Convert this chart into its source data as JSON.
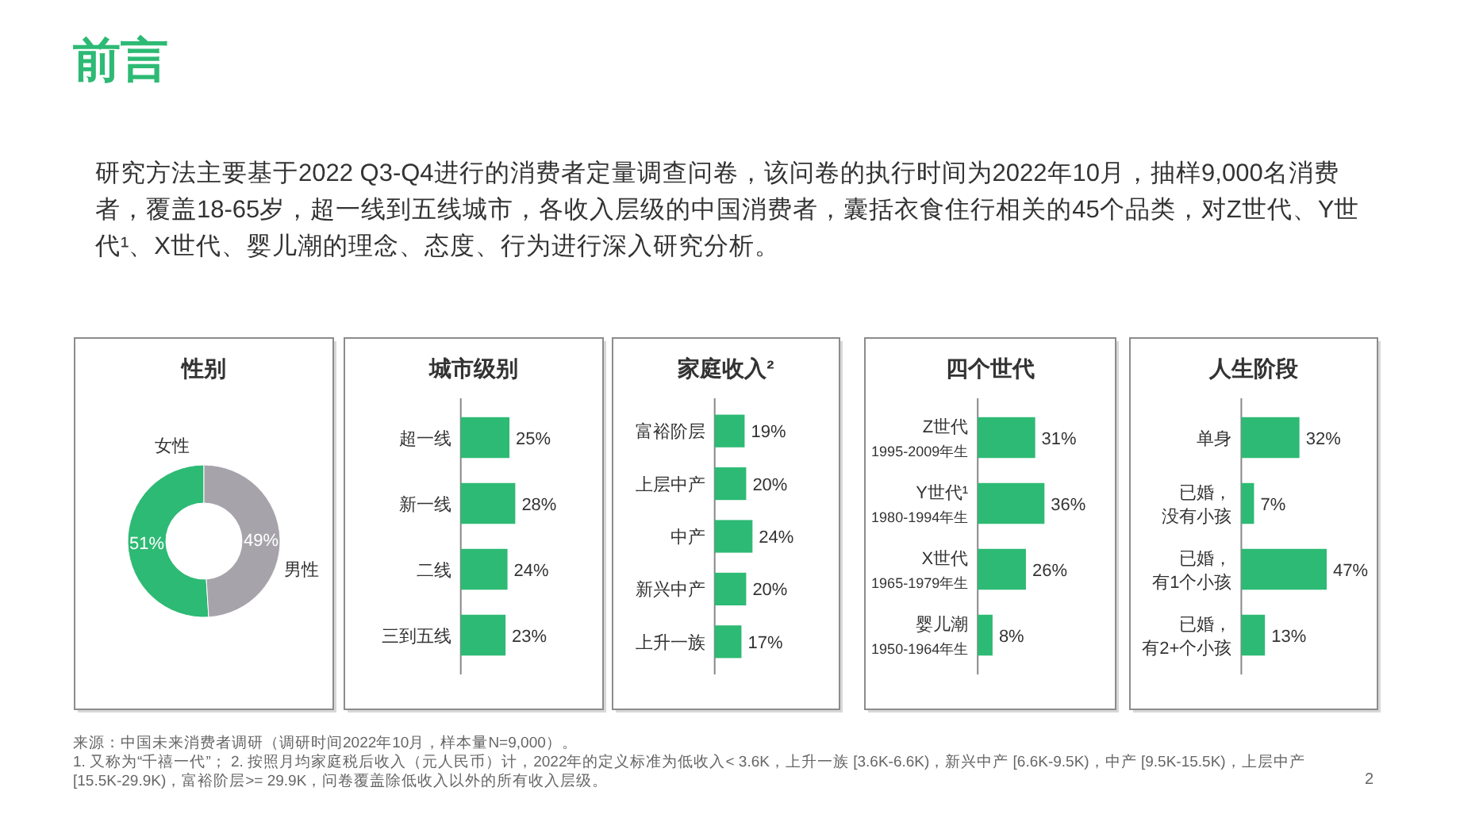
{
  "chart_data": [
    {
      "type": "other",
      "title": "前言",
      "annotations": [
        "研究方法主要基于2022 Q3-Q4进行的消费者定量调查问卷，该问卷的执行时间为2022年10月，抽样9,000名消费者，覆盖18-65岁，超一线到五线城市，各收入层级的中国消费者，囊括衣食住行相关的45个品类，对Z世代、Y世代¹、X世代、婴儿潮的理念、态度、行为进行深入研究分析。",
        "来源：中国未来消费者调研（调研时间2022年10月，样本量N=9,000）。",
        "1. 又称为“千禧一代”； 2. 按照月均家庭税后收入（元人民币）计，2022年的定义标准为低收入< 3.6K，上升一族 [3.6K-6.6K)，新兴中产 [6.6K-9.5K)，中产 [9.5K-15.5K)，上层中产 [15.5K-29.9K)，富裕阶层>= 29.9K，问卷覆盖除低收入以外的所有收入层级。",
        "2"
      ]
    },
    {
      "type": "donut",
      "title": "性别",
      "categories": [
        "女性",
        "男性"
      ],
      "values": [
        51,
        49
      ],
      "colors": [
        "#2dba74",
        "#a7a3ab"
      ],
      "value_labels": [
        "51%",
        "49%"
      ]
    },
    {
      "type": "bar",
      "orientation": "horizontal",
      "title": "城市级别",
      "categories": [
        "超一线",
        "新一线",
        "二线",
        "三到五线"
      ],
      "values": [
        25,
        28,
        24,
        23
      ],
      "color": "#2dba74",
      "value_labels": [
        "25%",
        "28%",
        "24%",
        "23%"
      ]
    },
    {
      "type": "bar",
      "orientation": "horizontal",
      "title": "家庭收入²",
      "categories": [
        "富裕阶层",
        "上层中产",
        "中产",
        "新兴中产",
        "上升一族"
      ],
      "values": [
        19,
        20,
        24,
        20,
        17
      ],
      "color": "#2dba74",
      "value_labels": [
        "19%",
        "20%",
        "24%",
        "20%",
        "17%"
      ]
    },
    {
      "type": "bar",
      "orientation": "horizontal",
      "title": "四个世代",
      "categories": [
        "Z世代\n1995-2009年生",
        "Y世代¹\n1980-1994年生",
        "X世代\n1965-1979年生",
        "婴儿潮\n1950-1964年生"
      ],
      "values": [
        31,
        36,
        26,
        8
      ],
      "color": "#2dba74",
      "value_labels": [
        "31%",
        "36%",
        "26%",
        "8%"
      ]
    },
    {
      "type": "bar",
      "orientation": "horizontal",
      "title": "人生阶段",
      "categories": [
        "单身",
        "已婚，没有小孩",
        "已婚，有1个小孩",
        "已婚，有2+个小孩"
      ],
      "values": [
        32,
        7,
        47,
        13
      ],
      "color": "#2dba74",
      "value_labels": [
        "32%",
        "7%",
        "47%",
        "13%"
      ]
    }
  ]
}
